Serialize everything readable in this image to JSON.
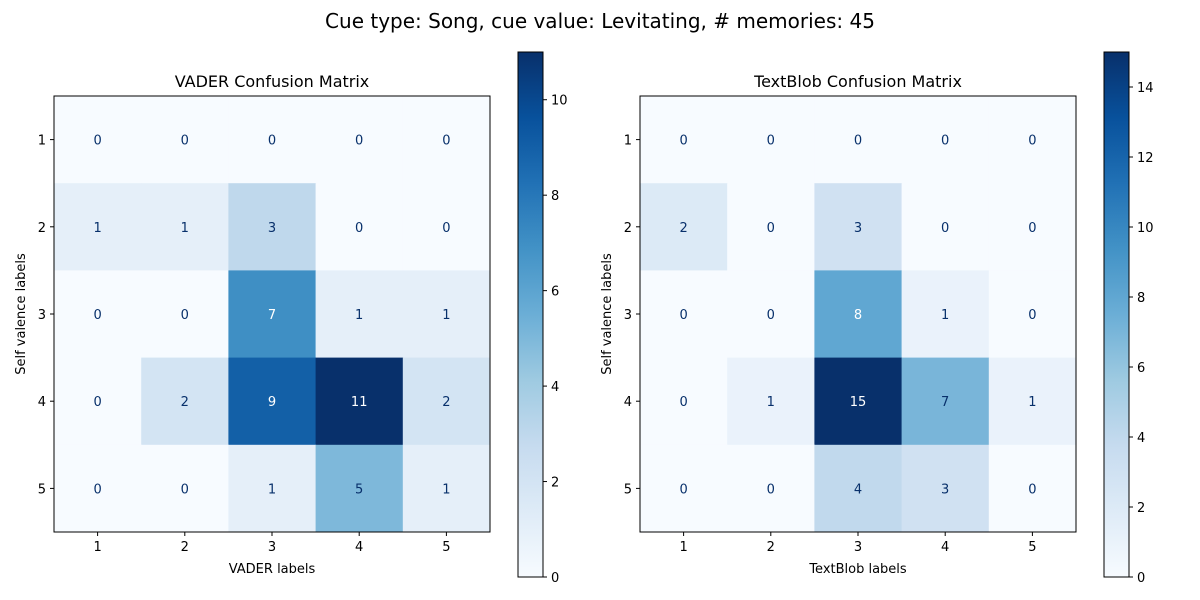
{
  "suptitle": "Cue type: Song, cue value: Levitating, # memories: 45",
  "chart_data": [
    {
      "type": "heatmap",
      "title": "VADER Confusion Matrix",
      "xlabel": "VADER labels",
      "ylabel": "Self valence labels",
      "x_categories": [
        "1",
        "2",
        "3",
        "4",
        "5"
      ],
      "y_categories": [
        "1",
        "2",
        "3",
        "4",
        "5"
      ],
      "values": [
        [
          0,
          0,
          0,
          0,
          0
        ],
        [
          1,
          1,
          3,
          0,
          0
        ],
        [
          0,
          0,
          7,
          1,
          1
        ],
        [
          0,
          2,
          9,
          11,
          2
        ],
        [
          0,
          0,
          1,
          5,
          1
        ]
      ],
      "colormap": "Blues",
      "colorbar_range": [
        0,
        11
      ],
      "colorbar_ticks": [
        0,
        2,
        4,
        6,
        8,
        10
      ]
    },
    {
      "type": "heatmap",
      "title": "TextBlob Confusion Matrix",
      "xlabel": "TextBlob labels",
      "ylabel": "Self valence labels",
      "x_categories": [
        "1",
        "2",
        "3",
        "4",
        "5"
      ],
      "y_categories": [
        "1",
        "2",
        "3",
        "4",
        "5"
      ],
      "values": [
        [
          0,
          0,
          0,
          0,
          0
        ],
        [
          2,
          0,
          3,
          0,
          0
        ],
        [
          0,
          0,
          8,
          1,
          0
        ],
        [
          0,
          1,
          15,
          7,
          1
        ],
        [
          0,
          0,
          4,
          3,
          0
        ]
      ],
      "colormap": "Blues",
      "colorbar_range": [
        0,
        15
      ],
      "colorbar_ticks": [
        0,
        2,
        4,
        6,
        8,
        10,
        12,
        14
      ]
    }
  ]
}
